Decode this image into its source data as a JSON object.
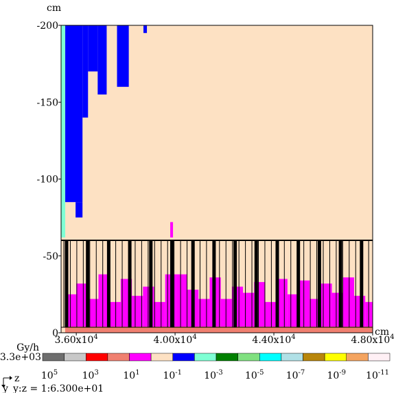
{
  "chart_data": {
    "type": "heatmap",
    "y_unit": "cm",
    "x_unit": "cm",
    "xlim": [
      35385,
      48000
    ],
    "ylim": [
      0,
      -200
    ],
    "xticks": [
      {
        "value": 36000,
        "label": "3.60x10",
        "exponent": "4"
      },
      {
        "value": 40000,
        "label": "4.00x10",
        "exponent": "4"
      },
      {
        "value": 44000,
        "label": "4.40x10",
        "exponent": "4"
      },
      {
        "value": 48000,
        "label": "4.80x10",
        "exponent": "4"
      }
    ],
    "yticks": [
      -200,
      -150,
      -100,
      -50,
      0
    ],
    "colorbar": {
      "unit": "Gy/h",
      "max_label": "3.3e+03",
      "colors": [
        "#6e6e6e",
        "#c8c8c8",
        "#ff0000",
        "#f08070",
        "#ff00ff",
        "#fde1c3",
        "#0000ff",
        "#7fffd4",
        "#008000",
        "#80e080",
        "#00ffff",
        "#b0e0e6",
        "#b8860b",
        "#ffff00",
        "#f4a460",
        "#fff0f5"
      ],
      "ticks": [
        {
          "value": 100000,
          "label": "10",
          "exponent": "5"
        },
        {
          "value": 1000,
          "label": "10",
          "exponent": "3"
        },
        {
          "value": 10,
          "label": "10",
          "exponent": "1"
        },
        {
          "value": 0.1,
          "label": "10",
          "exponent": "-1"
        },
        {
          "value": 0.001,
          "label": "10",
          "exponent": "-3"
        },
        {
          "value": 1e-05,
          "label": "10",
          "exponent": "-5"
        },
        {
          "value": 1e-07,
          "label": "10",
          "exponent": "-7"
        },
        {
          "value": 1e-09,
          "label": "10",
          "exponent": "-9"
        },
        {
          "value": 1e-11,
          "label": "10",
          "exponent": "-11"
        }
      ]
    },
    "cells": [
      {
        "x": [
          35385,
          48000
        ],
        "y": [
          0,
          -200
        ],
        "level": 5
      },
      {
        "x": [
          35385,
          35553
        ],
        "y": [
          -62,
          -200
        ],
        "level": 7
      },
      {
        "x": [
          35553,
          36252
        ],
        "y": [
          -85,
          -200
        ],
        "level": 6
      },
      {
        "x": [
          35972,
          36252
        ],
        "y": [
          -75,
          -85
        ],
        "level": 6
      },
      {
        "x": [
          36252,
          36476
        ],
        "y": [
          -140,
          -200
        ],
        "level": 6
      },
      {
        "x": [
          36476,
          36867
        ],
        "y": [
          -170,
          -200
        ],
        "level": 6
      },
      {
        "x": [
          36867,
          37231
        ],
        "y": [
          -155,
          -200
        ],
        "level": 6
      },
      {
        "x": [
          37650,
          38126
        ],
        "y": [
          -160,
          -200
        ],
        "level": 6
      },
      {
        "x": [
          38720,
          38860
        ],
        "y": [
          -195,
          -200
        ],
        "level": 6
      },
      {
        "x": [
          39804,
          39916
        ],
        "y": [
          -62,
          -72
        ],
        "level": 4
      },
      {
        "x": [
          35550,
          36000
        ],
        "y": [
          -4,
          -25
        ],
        "level": 4
      },
      {
        "x": [
          36000,
          36450
        ],
        "y": [
          -4,
          -32
        ],
        "level": 4
      },
      {
        "x": [
          36450,
          36900
        ],
        "y": [
          -4,
          -22
        ],
        "level": 4
      },
      {
        "x": [
          36900,
          37350
        ],
        "y": [
          -4,
          -38
        ],
        "level": 4
      },
      {
        "x": [
          37350,
          37800
        ],
        "y": [
          -4,
          -20
        ],
        "level": 4
      },
      {
        "x": [
          37800,
          38250
        ],
        "y": [
          -4,
          -35
        ],
        "level": 4
      },
      {
        "x": [
          38250,
          38700
        ],
        "y": [
          -4,
          -24
        ],
        "level": 4
      },
      {
        "x": [
          38700,
          39150
        ],
        "y": [
          -4,
          -30
        ],
        "level": 4
      },
      {
        "x": [
          39150,
          39600
        ],
        "y": [
          -4,
          -20
        ],
        "level": 4
      },
      {
        "x": [
          39600,
          40050
        ],
        "y": [
          -4,
          -38
        ],
        "level": 4
      },
      {
        "x": [
          40050,
          40500
        ],
        "y": [
          -4,
          -38
        ],
        "level": 4
      },
      {
        "x": [
          40500,
          40950
        ],
        "y": [
          -4,
          -28
        ],
        "level": 4
      },
      {
        "x": [
          40950,
          41400
        ],
        "y": [
          -4,
          -22
        ],
        "level": 4
      },
      {
        "x": [
          41400,
          41850
        ],
        "y": [
          -4,
          -36
        ],
        "level": 4
      },
      {
        "x": [
          41850,
          42300
        ],
        "y": [
          -4,
          -22
        ],
        "level": 4
      },
      {
        "x": [
          42300,
          42750
        ],
        "y": [
          -4,
          -30
        ],
        "level": 4
      },
      {
        "x": [
          42750,
          43200
        ],
        "y": [
          -4,
          -26
        ],
        "level": 4
      },
      {
        "x": [
          43200,
          43650
        ],
        "y": [
          -4,
          -33
        ],
        "level": 4
      },
      {
        "x": [
          43650,
          44100
        ],
        "y": [
          -4,
          -20
        ],
        "level": 4
      },
      {
        "x": [
          44100,
          44550
        ],
        "y": [
          -4,
          -35
        ],
        "level": 4
      },
      {
        "x": [
          44550,
          45000
        ],
        "y": [
          -4,
          -25
        ],
        "level": 4
      },
      {
        "x": [
          45000,
          45450
        ],
        "y": [
          -4,
          -34
        ],
        "level": 4
      },
      {
        "x": [
          45450,
          45900
        ],
        "y": [
          -4,
          -22
        ],
        "level": 4
      },
      {
        "x": [
          45900,
          46350
        ],
        "y": [
          -4,
          -32
        ],
        "level": 4
      },
      {
        "x": [
          46350,
          46800
        ],
        "y": [
          -4,
          -26
        ],
        "level": 4
      },
      {
        "x": [
          46800,
          47250
        ],
        "y": [
          -4,
          -36
        ],
        "level": 4
      },
      {
        "x": [
          47250,
          47700
        ],
        "y": [
          -4,
          -24
        ],
        "level": 4
      },
      {
        "x": [
          47700,
          48000
        ],
        "y": [
          -4,
          -20
        ],
        "level": 4
      },
      {
        "x": [
          35550,
          48000
        ],
        "y": [
          0,
          -4
        ],
        "level": 3
      }
    ],
    "orientation": {
      "horizontal": "z",
      "vertical": "y",
      "ratio": "y:z = 1:6.300e+01"
    }
  }
}
